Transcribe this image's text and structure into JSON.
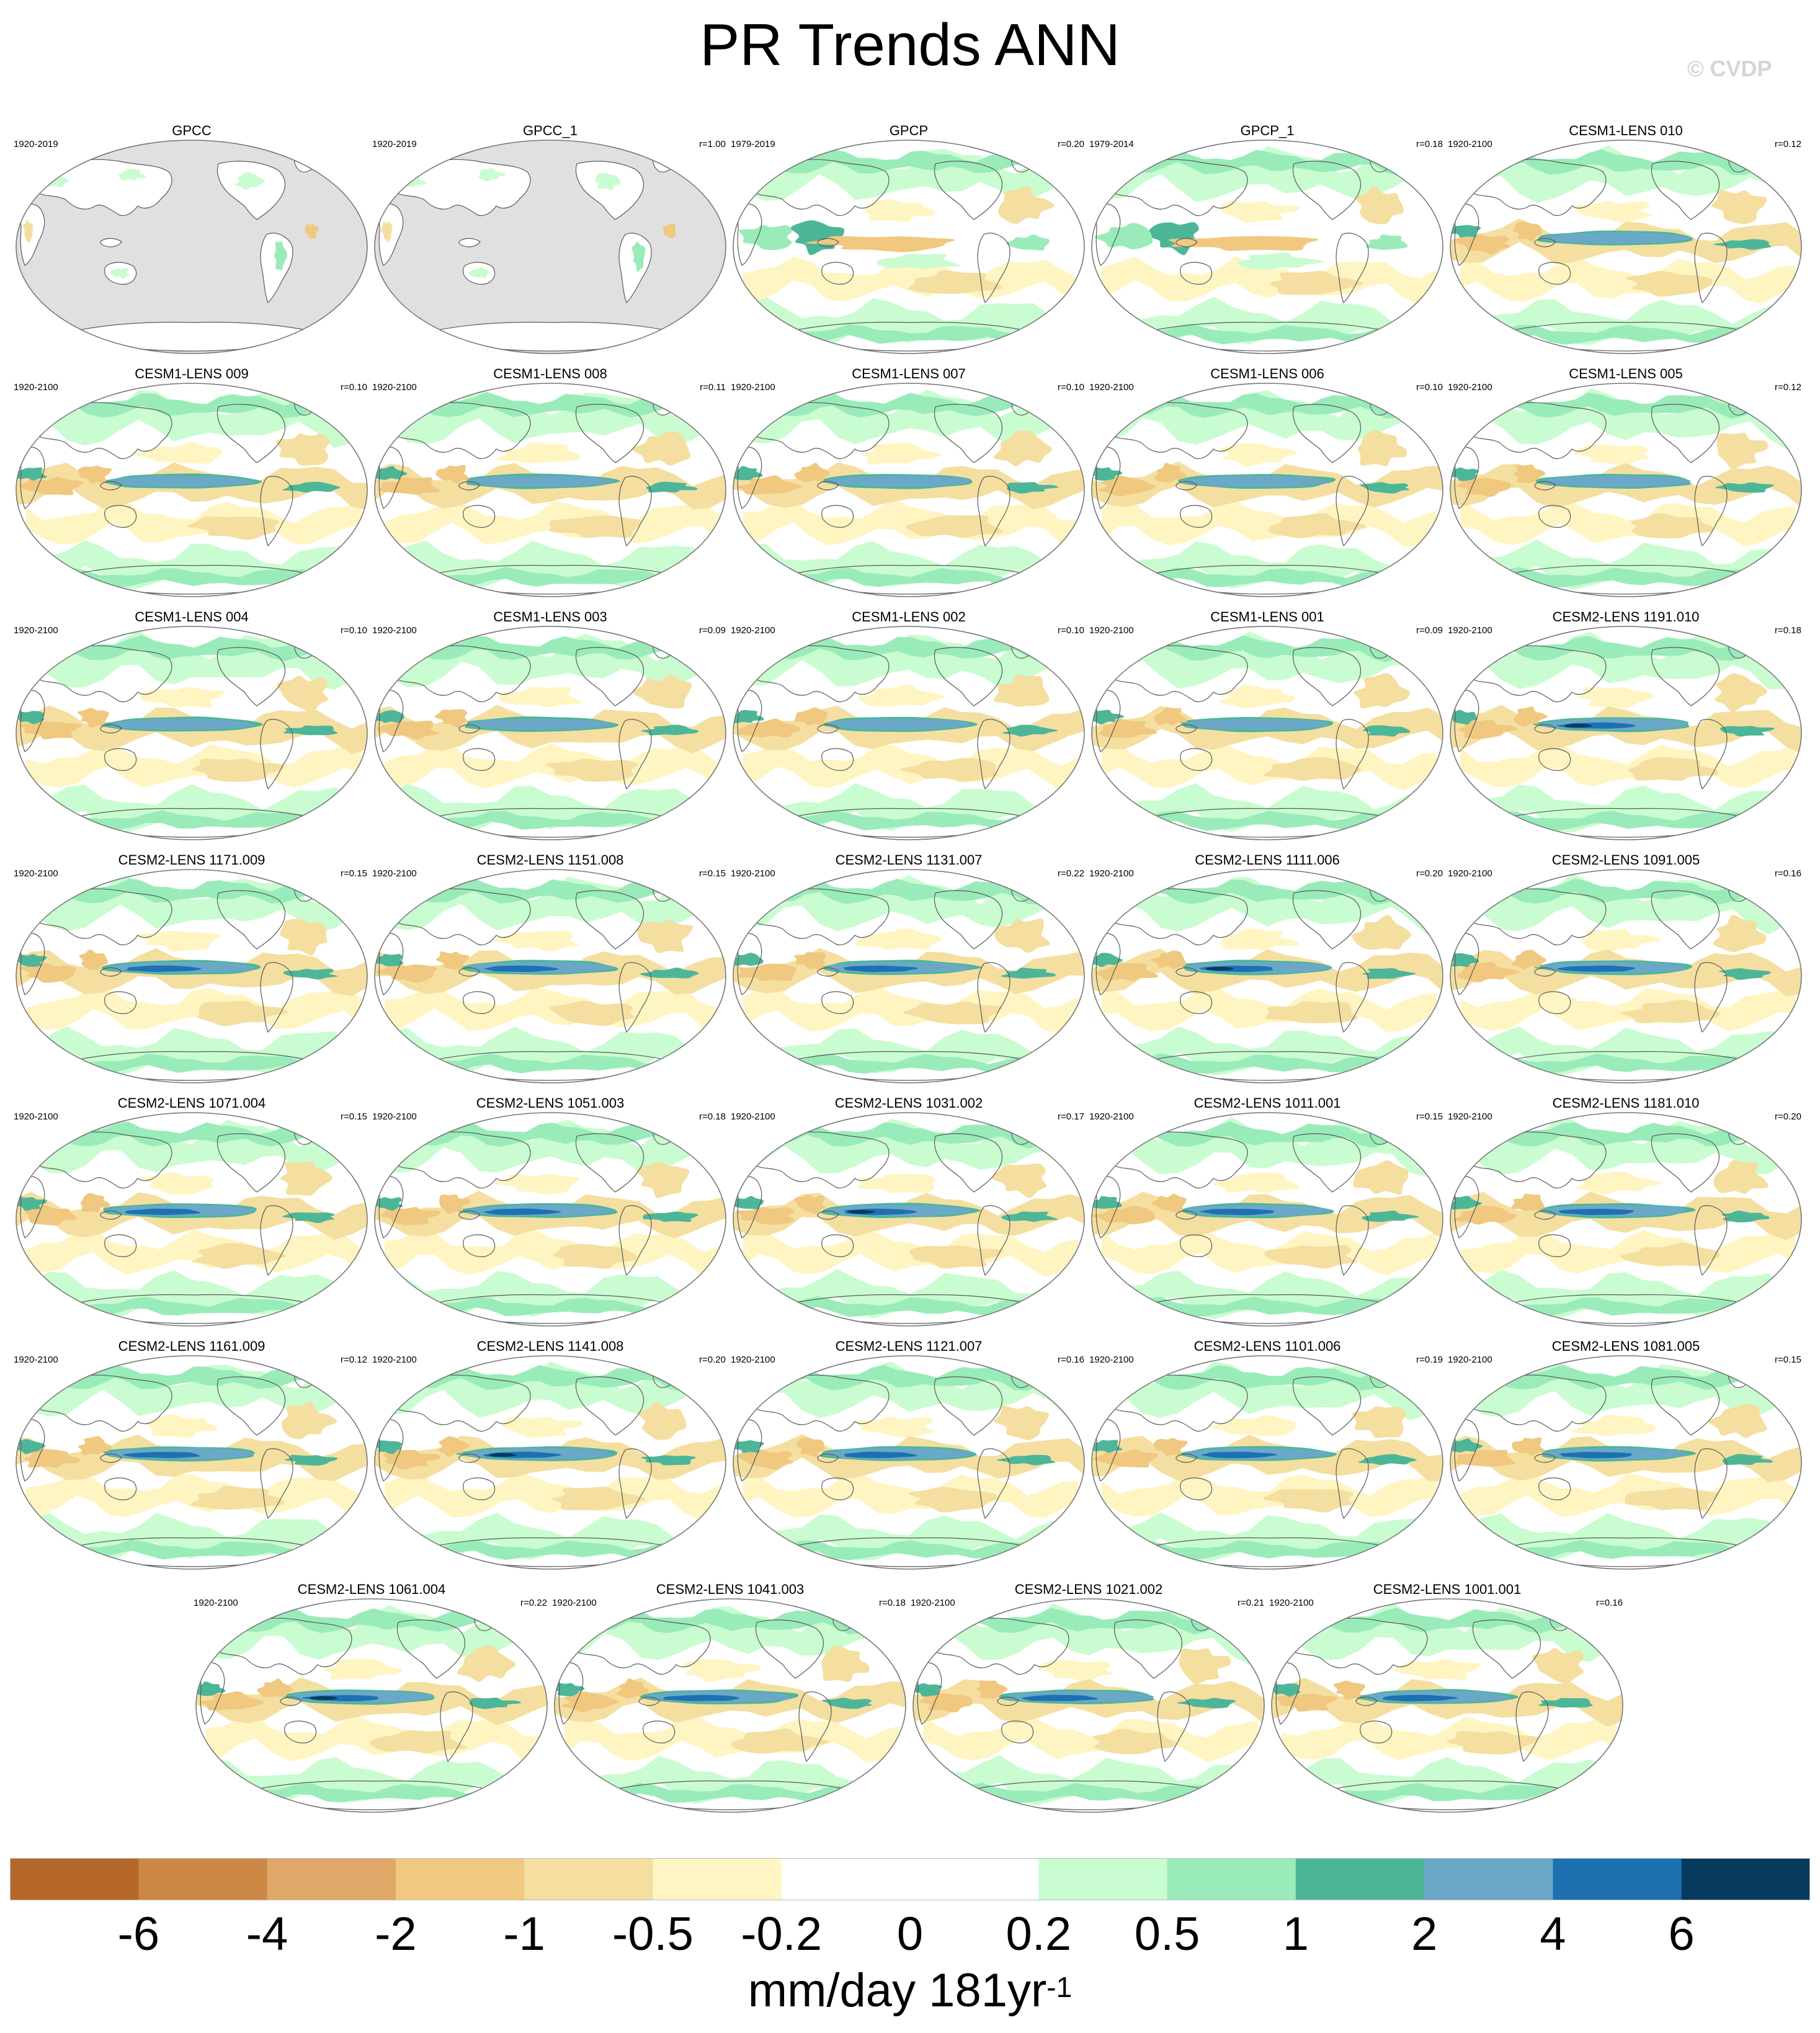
{
  "title": "PR Trends ANN",
  "copyright": "© CVDP",
  "colors": {
    "ocean_missing": "#e0e0e0",
    "continent_outline": "#5a5a5a",
    "map_border": "#777777"
  },
  "chart_data": {
    "type": "heatmap",
    "title": "PR Trends ANN",
    "colorbar": {
      "labels": [
        "-6",
        "-4",
        "-2",
        "-1",
        "-0.5",
        "-0.2",
        "0",
        "0.2",
        "0.5",
        "1",
        "2",
        "4",
        "6"
      ],
      "colors": [
        "#b5672a",
        "#cc8744",
        "#dfa868",
        "#f0c87f",
        "#f4dfa0",
        "#fff5c3",
        "#ffffff",
        "#ffffff",
        "#c9fcd0",
        "#99ecb9",
        "#4db699",
        "#6ba8c8",
        "#1d71b0",
        "#063a5e"
      ],
      "units_base": "mm/day 181yr",
      "units_exp": "-1"
    },
    "panels": [
      {
        "name": "GPCC",
        "period": "1920-2019",
        "r": "",
        "style": "gpcc"
      },
      {
        "name": "GPCC_1",
        "period": "1920-2019",
        "r": "r=1.00",
        "style": "gpcc"
      },
      {
        "name": "GPCP",
        "period": "1979-2019",
        "r": "r=0.20",
        "style": "gpcp"
      },
      {
        "name": "GPCP_1",
        "period": "1979-2014",
        "r": "r=0.18",
        "style": "gpcp"
      },
      {
        "name": "CESM1-LENS 010",
        "period": "1920-2100",
        "r": "r=0.12",
        "style": "cesm1"
      },
      {
        "name": "CESM1-LENS 009",
        "period": "1920-2100",
        "r": "r=0.10",
        "style": "cesm1"
      },
      {
        "name": "CESM1-LENS 008",
        "period": "1920-2100",
        "r": "r=0.11",
        "style": "cesm1"
      },
      {
        "name": "CESM1-LENS 007",
        "period": "1920-2100",
        "r": "r=0.10",
        "style": "cesm1"
      },
      {
        "name": "CESM1-LENS 006",
        "period": "1920-2100",
        "r": "r=0.10",
        "style": "cesm1"
      },
      {
        "name": "CESM1-LENS 005",
        "period": "1920-2100",
        "r": "r=0.12",
        "style": "cesm1"
      },
      {
        "name": "CESM1-LENS 004",
        "period": "1920-2100",
        "r": "r=0.10",
        "style": "cesm1"
      },
      {
        "name": "CESM1-LENS 003",
        "period": "1920-2100",
        "r": "r=0.09",
        "style": "cesm1"
      },
      {
        "name": "CESM1-LENS 002",
        "period": "1920-2100",
        "r": "r=0.10",
        "style": "cesm1"
      },
      {
        "name": "CESM1-LENS 001",
        "period": "1920-2100",
        "r": "r=0.09",
        "style": "cesm1"
      },
      {
        "name": "CESM2-LENS 1191.010",
        "period": "1920-2100",
        "r": "r=0.18",
        "style": "cesm2"
      },
      {
        "name": "CESM2-LENS 1171.009",
        "period": "1920-2100",
        "r": "r=0.15",
        "style": "cesm2"
      },
      {
        "name": "CESM2-LENS 1151.008",
        "period": "1920-2100",
        "r": "r=0.15",
        "style": "cesm2"
      },
      {
        "name": "CESM2-LENS 1131.007",
        "period": "1920-2100",
        "r": "r=0.22",
        "style": "cesm2"
      },
      {
        "name": "CESM2-LENS 1111.006",
        "period": "1920-2100",
        "r": "r=0.20",
        "style": "cesm2"
      },
      {
        "name": "CESM2-LENS 1091.005",
        "period": "1920-2100",
        "r": "r=0.16",
        "style": "cesm2"
      },
      {
        "name": "CESM2-LENS 1071.004",
        "period": "1920-2100",
        "r": "r=0.15",
        "style": "cesm2"
      },
      {
        "name": "CESM2-LENS 1051.003",
        "period": "1920-2100",
        "r": "r=0.18",
        "style": "cesm2"
      },
      {
        "name": "CESM2-LENS 1031.002",
        "period": "1920-2100",
        "r": "r=0.17",
        "style": "cesm2"
      },
      {
        "name": "CESM2-LENS 1011.001",
        "period": "1920-2100",
        "r": "r=0.15",
        "style": "cesm2"
      },
      {
        "name": "CESM2-LENS 1181.010",
        "period": "1920-2100",
        "r": "r=0.20",
        "style": "cesm2"
      },
      {
        "name": "CESM2-LENS 1161.009",
        "period": "1920-2100",
        "r": "r=0.12",
        "style": "cesm2"
      },
      {
        "name": "CESM2-LENS 1141.008",
        "period": "1920-2100",
        "r": "r=0.20",
        "style": "cesm2"
      },
      {
        "name": "CESM2-LENS 1121.007",
        "period": "1920-2100",
        "r": "r=0.16",
        "style": "cesm2"
      },
      {
        "name": "CESM2-LENS 1101.006",
        "period": "1920-2100",
        "r": "r=0.19",
        "style": "cesm2"
      },
      {
        "name": "CESM2-LENS 1081.005",
        "period": "1920-2100",
        "r": "r=0.15",
        "style": "cesm2"
      },
      {
        "name": "CESM2-LENS 1061.004",
        "period": "1920-2100",
        "r": "r=0.22",
        "style": "cesm2"
      },
      {
        "name": "CESM2-LENS 1041.003",
        "period": "1920-2100",
        "r": "r=0.18",
        "style": "cesm2"
      },
      {
        "name": "CESM2-LENS 1021.002",
        "period": "1920-2100",
        "r": "r=0.21",
        "style": "cesm2"
      },
      {
        "name": "CESM2-LENS 1001.001",
        "period": "1920-2100",
        "r": "r=0.16",
        "style": "cesm2"
      }
    ]
  }
}
